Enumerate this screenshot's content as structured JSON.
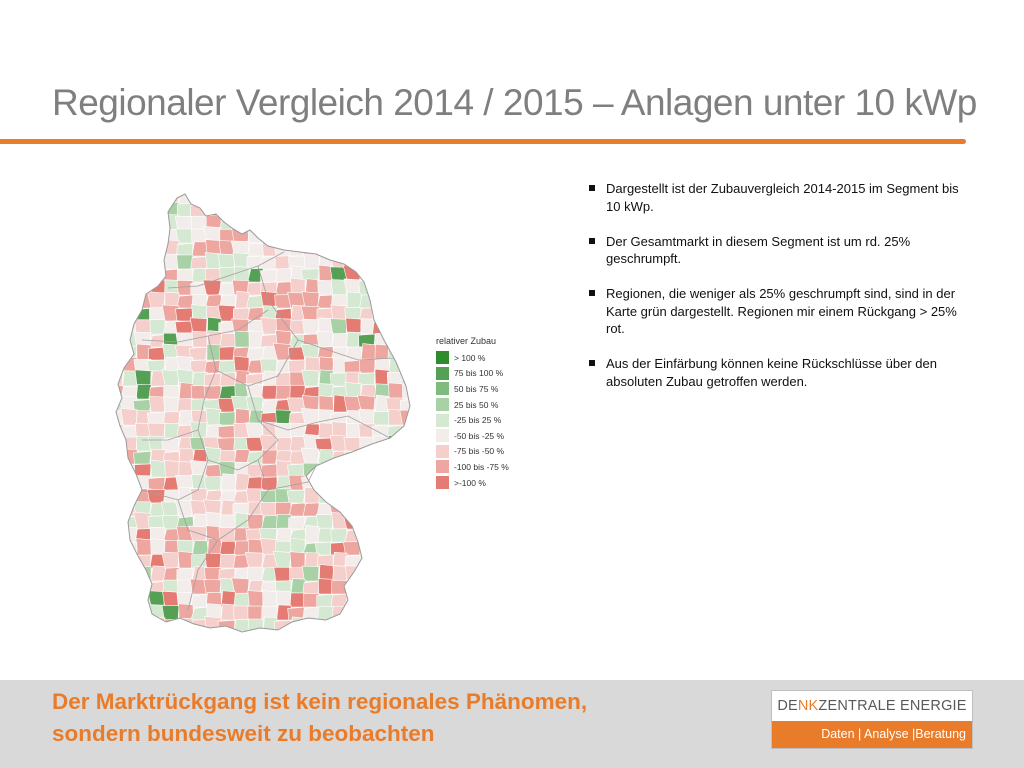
{
  "slide": {
    "title": "Regionaler Vergleich 2014 / 2015 – Anlagen unter 10 kWp"
  },
  "legend": {
    "title": "relativer Zubau",
    "items": [
      {
        "label": "> 100 %",
        "color": "#2e8b2e"
      },
      {
        "label": "75 bis 100 %",
        "color": "#55a055"
      },
      {
        "label": "50 bis 75 %",
        "color": "#7fba7f"
      },
      {
        "label": "25 bis 50 %",
        "color": "#a9d1a6"
      },
      {
        "label": "-25 bis 25 %",
        "color": "#d5e8d2"
      },
      {
        "label": "-50 bis -25 %",
        "color": "#f2ecea"
      },
      {
        "label": "-75 bis -50 %",
        "color": "#f5cfcb"
      },
      {
        "label": "-100 bis -75 %",
        "color": "#eea7a0"
      },
      {
        "label": ">-100 %",
        "color": "#e57c74"
      }
    ]
  },
  "bullets": [
    "Dargestellt ist der Zubauvergleich 2014-2015 im Segment bis 10 kWp.",
    "Der Gesamtmarkt in diesem Segment ist um rd. 25% geschrumpft.",
    "Regionen, die weniger als 25% geschrumpft sind, sind in der Karte grün dargestellt. Regionen mir einem Rückgang > 25% rot.",
    "Aus der Einfärbung können keine Rückschlüsse über den absoluten Zubau getroffen werden."
  ],
  "footer": {
    "line1": "Der Marktrückgang ist kein regionales Phänomen,",
    "line2": "sondern bundesweit zu beobachten"
  },
  "logo": {
    "name_part1": "DE",
    "name_part2": "NK",
    "name_part3": "ZENTRALE ENERGIE",
    "tagline": "Daten | Analyse |Beratung"
  },
  "colors": {
    "accent": "#e97c2a",
    "title_gray": "#7f7f7f",
    "footer_band": "#d9d9d9"
  }
}
